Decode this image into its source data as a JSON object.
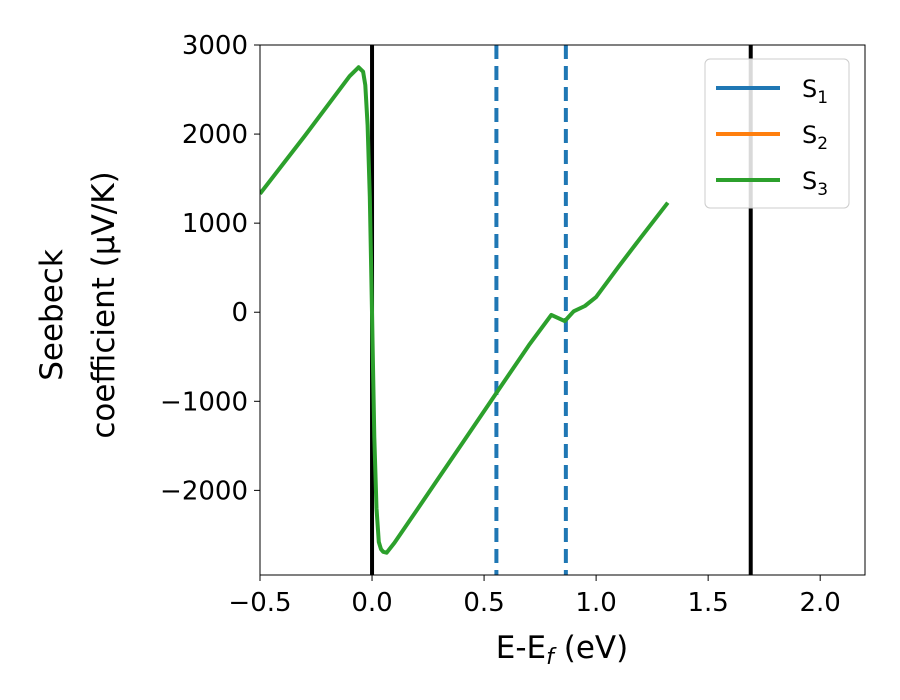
{
  "chart_data": {
    "type": "line",
    "title": "",
    "xlabel_parts": [
      "E-E",
      "f",
      " (eV)"
    ],
    "ylabel_lines": [
      "Seebeck",
      "coefficient  (μV/K)"
    ],
    "xlim": [
      -0.5,
      2.2
    ],
    "ylim": [
      -2950,
      3000
    ],
    "xticks": [
      -0.5,
      0.0,
      0.5,
      1.0,
      1.5,
      2.0
    ],
    "xtick_labels": [
      "−0.5",
      "0.0",
      "0.5",
      "1.0",
      "1.5",
      "2.0"
    ],
    "yticks": [
      3000,
      2000,
      1000,
      0,
      -1000,
      -2000
    ],
    "ytick_labels": [
      "3000",
      "2000",
      "1000",
      "0",
      "−1000",
      "−2000"
    ],
    "grid": false,
    "legend_position": "top-right",
    "series": [
      {
        "name": "S",
        "subscript": "1",
        "color": "#1f77b4",
        "x": [],
        "y": []
      },
      {
        "name": "S",
        "subscript": "2",
        "color": "#ff7f0e",
        "x": [],
        "y": []
      },
      {
        "name": "S",
        "subscript": "3",
        "color": "#2ca02c",
        "x": [
          -0.5,
          -0.3,
          -0.1,
          -0.06,
          -0.04,
          -0.03,
          -0.02,
          -0.01,
          0.0,
          0.01,
          0.02,
          0.03,
          0.04,
          0.05,
          0.065,
          0.1,
          0.2,
          0.3,
          0.4,
          0.5,
          0.6,
          0.7,
          0.8,
          0.86,
          0.9,
          0.95,
          1.0,
          1.1,
          1.2,
          1.32
        ],
        "y": [
          1330,
          1980,
          2650,
          2750,
          2700,
          2550,
          2100,
          1300,
          0,
          -1400,
          -2200,
          -2580,
          -2660,
          -2690,
          -2700,
          -2590,
          -2220,
          -1850,
          -1480,
          -1110,
          -740,
          -370,
          -30,
          -100,
          10,
          70,
          170,
          510,
          840,
          1230
        ]
      }
    ],
    "vertical_lines": [
      {
        "x": 0.0,
        "color": "#000000",
        "style": "solid"
      },
      {
        "x": 1.69,
        "color": "#000000",
        "style": "solid"
      },
      {
        "x": 0.555,
        "color": "#1f77b4",
        "style": "dashed"
      },
      {
        "x": 0.865,
        "color": "#1f77b4",
        "style": "dashed"
      }
    ]
  }
}
